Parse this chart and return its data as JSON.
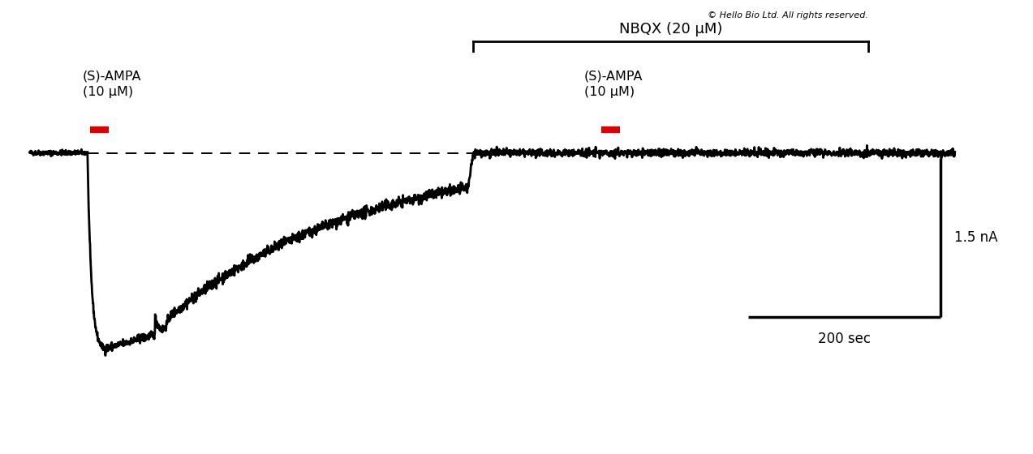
{
  "copyright_text": "© Hello Bio Ltd. All rights reserved.",
  "nbqx_label": "NBQX (20 μM)",
  "ampa_label1": "(S)-AMPA\n(10 μM)",
  "ampa_label2": "(S)-AMPA\n(10 μM)",
  "scale_bar_nA_label": "1.5 nA",
  "scale_bar_sec_label": "200 sec",
  "trace_color": "#000000",
  "baseline_color": "#000000",
  "red_bar_color": "#dd0000",
  "background_color": "#ffffff",
  "figsize": [
    12.73,
    5.6
  ],
  "dpi": 100
}
